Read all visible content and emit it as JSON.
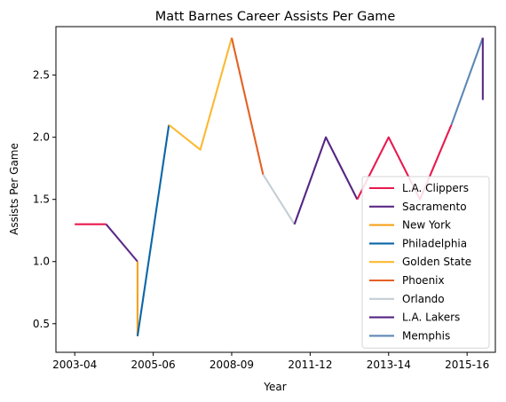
{
  "chart_data": {
    "type": "line",
    "title": "Matt Barnes Career Assists Per Game",
    "xlabel": "Year",
    "ylabel": "Assists Per Game",
    "xlim": [
      -0.6,
      13.4
    ],
    "ylim": [
      0.27,
      2.89
    ],
    "x_ticks": [
      {
        "x": 0,
        "label": "2003-04"
      },
      {
        "x": 2.5,
        "label": "2005-06"
      },
      {
        "x": 5,
        "label": "2008-09"
      },
      {
        "x": 7.5,
        "label": "2011-12"
      },
      {
        "x": 10,
        "label": "2013-14"
      },
      {
        "x": 12.5,
        "label": "2015-16"
      }
    ],
    "y_ticks": [
      0.5,
      1.0,
      1.5,
      2.0,
      2.5
    ],
    "y_tick_labels": [
      "0.5",
      "1.0",
      "1.5",
      "2.0",
      "2.5"
    ],
    "grid": false,
    "legend_position": "lower-right",
    "series": [
      {
        "name": "L.A. Clippers",
        "color": "#e8194f",
        "x": [
          0,
          1
        ],
        "y": [
          1.3,
          1.3
        ]
      },
      {
        "name": "Sacramento",
        "color": "#5b2a86",
        "x": [
          1,
          2
        ],
        "y": [
          1.3,
          1.0
        ]
      },
      {
        "name": "New York",
        "color": "#f5a21b",
        "x": [
          2,
          2
        ],
        "y": [
          1.0,
          0.4
        ]
      },
      {
        "name": "Philadelphia",
        "color": "#0b66a8",
        "x": [
          2,
          3
        ],
        "y": [
          0.4,
          2.1
        ]
      },
      {
        "name": "Golden State",
        "color": "#fcb933",
        "x": [
          3,
          4,
          5
        ],
        "y": [
          2.1,
          1.9,
          2.8
        ]
      },
      {
        "name": "Phoenix",
        "color": "#e56024",
        "x": [
          5,
          6
        ],
        "y": [
          2.8,
          1.7
        ]
      },
      {
        "name": "Orlando",
        "color": "#c4ced4",
        "x": [
          6,
          7
        ],
        "y": [
          1.7,
          1.3
        ]
      },
      {
        "name": "L.A. Lakers",
        "color": "#552583",
        "x": [
          7,
          8,
          9
        ],
        "y": [
          1.3,
          2.0,
          1.5
        ]
      },
      {
        "name": "L.A. Clippers",
        "color": "#e8194f",
        "x": [
          9,
          10,
          11,
          12
        ],
        "y": [
          1.5,
          2.0,
          1.5,
          2.1
        ]
      },
      {
        "name": "Memphis",
        "color": "#5d88b5",
        "x": [
          12,
          13
        ],
        "y": [
          2.1,
          2.8
        ]
      },
      {
        "name": "Sacramento",
        "color": "#5b2a86",
        "x": [
          13,
          13
        ],
        "y": [
          2.8,
          2.3
        ]
      }
    ],
    "legend": [
      {
        "name": "L.A. Clippers",
        "color": "#e8194f"
      },
      {
        "name": "Sacramento",
        "color": "#5b2a86"
      },
      {
        "name": "New York",
        "color": "#f5a21b"
      },
      {
        "name": "Philadelphia",
        "color": "#0b66a8"
      },
      {
        "name": "Golden State",
        "color": "#fcb933"
      },
      {
        "name": "Phoenix",
        "color": "#e56024"
      },
      {
        "name": "Orlando",
        "color": "#c4ced4"
      },
      {
        "name": "L.A. Lakers",
        "color": "#552583"
      },
      {
        "name": "Memphis",
        "color": "#5d88b5"
      }
    ]
  }
}
